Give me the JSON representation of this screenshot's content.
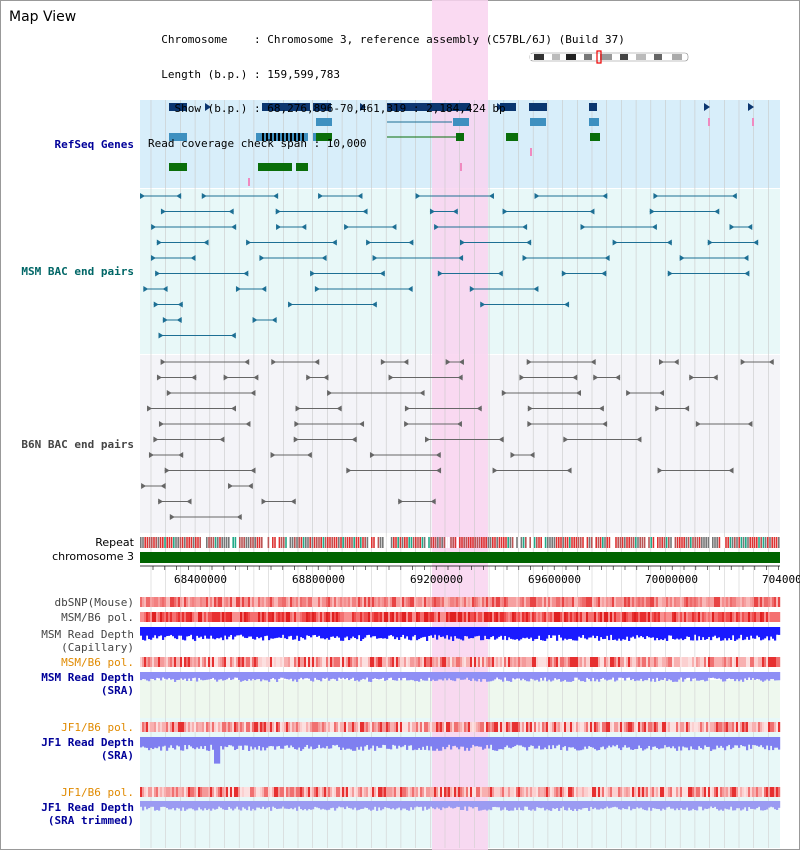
{
  "header": {
    "title": "Map View",
    "info_lines": [
      "  Chromosome    : Chromosome 3, reference assembly (C57BL/6J) (Build 37)",
      "  Length (b.p.) : 159,599,783",
      "    Show (b.p.) : 68,276,896-70,461,319 : 2,184,424 bp",
      "Read coverage check span : 10,000"
    ]
  },
  "tracks": {
    "refseq": "RefSeq Genes",
    "msm_bac": "MSM BAC end pairs",
    "b6n_bac": "B6N BAC end pairs",
    "repeat": "Repeat",
    "chromosome": "chromosome 3",
    "dbsnp": "dbSNP(Mouse)",
    "msm_b6_pol": "MSM/B6 pol.",
    "msm_depth_cap_1": "MSM Read Depth",
    "msm_depth_cap_2": "(Capillary)",
    "msm_b6_pol_2": "MSM/B6 pol.",
    "msm_depth_sra_1": "MSM Read Depth",
    "msm_depth_sra_2": "(SRA)",
    "jf1_b6_pol": "JF1/B6 pol.",
    "jf1_depth_1": "JF1 Read Depth",
    "jf1_depth_2": "(SRA)",
    "jf1_b6_pol_2": "JF1/B6 pol.",
    "jf1_trim_1": "JF1 Read Depth",
    "jf1_trim_2": "(SRA trimmed)"
  },
  "axis": {
    "ticks": [
      "68400000",
      "68800000",
      "69200000",
      "69600000",
      "70000000",
      "704000"
    ]
  },
  "colors": {
    "highlight": "#f9d3f0",
    "refseq_bg": "#d8eefa",
    "msm_bg": "#e8f8f8",
    "b6n_bg": "#f4f4f8",
    "gene_dark": "#0b3670",
    "gene_mid": "#3e90c0",
    "gene_green": "#0a6e0a",
    "bac_msm": "#1d6f94",
    "bac_b6n": "#666666",
    "chrom": "#006400",
    "label_blue": "#000099",
    "label_teal": "#006666",
    "label_orange": "#e08a00"
  }
}
